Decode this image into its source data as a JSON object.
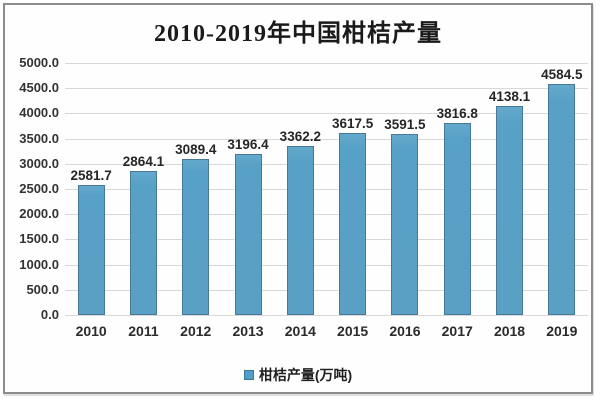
{
  "title": "2010-2019年中国柑桔产量",
  "legend": {
    "label": "柑桔产量(万吨)",
    "swatch_color": "#4f9fc9"
  },
  "colors": {
    "bar_fill": "#5aa2c8",
    "bar_border": "#47789a",
    "gridline": "#d8d8d8",
    "window_border": "#8c8c8c",
    "text": "#262626"
  },
  "chart_data": {
    "type": "bar",
    "title": "2010-2019年中国柑桔产量",
    "categories": [
      "2010",
      "2011",
      "2012",
      "2013",
      "2014",
      "2015",
      "2016",
      "2017",
      "2018",
      "2019"
    ],
    "values": [
      2581.7,
      2864.1,
      3089.4,
      3196.4,
      3362.2,
      3617.5,
      3591.5,
      3816.8,
      4138.1,
      4584.5
    ],
    "series_name": "柑桔产量(万吨)",
    "xlabel": "",
    "ylabel": "",
    "ylim": [
      0,
      5000
    ],
    "ytick_step": 500,
    "yticks": [
      "5000.0",
      "4500.0",
      "4000.0",
      "3500.0",
      "3000.0",
      "2500.0",
      "2000.0",
      "1500.0",
      "1000.0",
      "500.0",
      "0.0"
    ],
    "grid": true,
    "legend_position": "bottom",
    "value_label_decimals": 1
  }
}
